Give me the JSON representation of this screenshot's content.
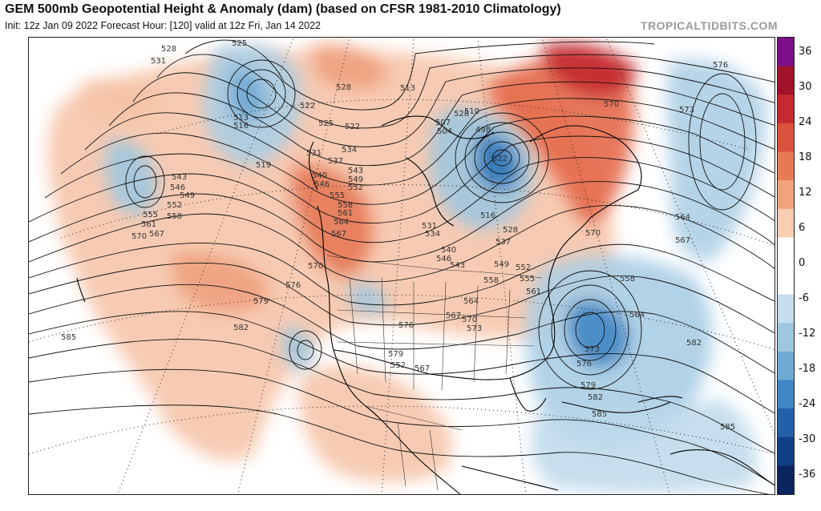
{
  "header": {
    "title": "GEM 500mb Geopotential Height & Anomaly (dam) (based on CFSR 1981-2010 Climatology)",
    "subtitle": "Init: 12z Jan 09 2022   Forecast Hour: [120]   valid at 12z Fri, Jan 14 2022",
    "watermark": "TROPICALTIDBITS.COM"
  },
  "colorbar": {
    "unit": "dam",
    "ticks": [
      "36",
      "30",
      "24",
      "18",
      "12",
      "6",
      "0",
      "-6",
      "-12",
      "-18",
      "-24",
      "-30",
      "-36"
    ],
    "colors": [
      "#7a0f86",
      "#a1132a",
      "#c42a2f",
      "#d9523b",
      "#e67a55",
      "#f0a47e",
      "#f8cdb2",
      "#ffffff",
      "#ffffff",
      "#c6ddeb",
      "#9ec6df",
      "#6fa9d3",
      "#3f86c3",
      "#2260a8",
      "#123f85",
      "#0a2460"
    ]
  },
  "contour_labels": [
    "528",
    "525",
    "531",
    "513",
    "516",
    "519",
    "522",
    "525",
    "522",
    "528",
    "531",
    "534",
    "537",
    "540",
    "543",
    "546",
    "549",
    "552",
    "555",
    "558",
    "561",
    "564",
    "567",
    "570",
    "573",
    "576",
    "579",
    "582",
    "585",
    "543",
    "546",
    "549",
    "552",
    "555",
    "558",
    "561",
    "567",
    "570",
    "528",
    "513",
    "510",
    "507",
    "504",
    "498",
    "516",
    "522",
    "528",
    "531",
    "534",
    "537",
    "540",
    "543",
    "546",
    "549",
    "552",
    "555",
    "558",
    "561",
    "564",
    "567",
    "570",
    "573",
    "576",
    "579",
    "552",
    "567",
    "570",
    "573",
    "576",
    "564",
    "567",
    "570",
    "558",
    "564",
    "573",
    "576",
    "579",
    "582",
    "585",
    "582",
    "585"
  ],
  "map": {
    "field": "500mb geopotential height contours with anomaly shading",
    "features": [
      "coastlines",
      "country borders",
      "state borders",
      "lat-lon grid"
    ]
  }
}
